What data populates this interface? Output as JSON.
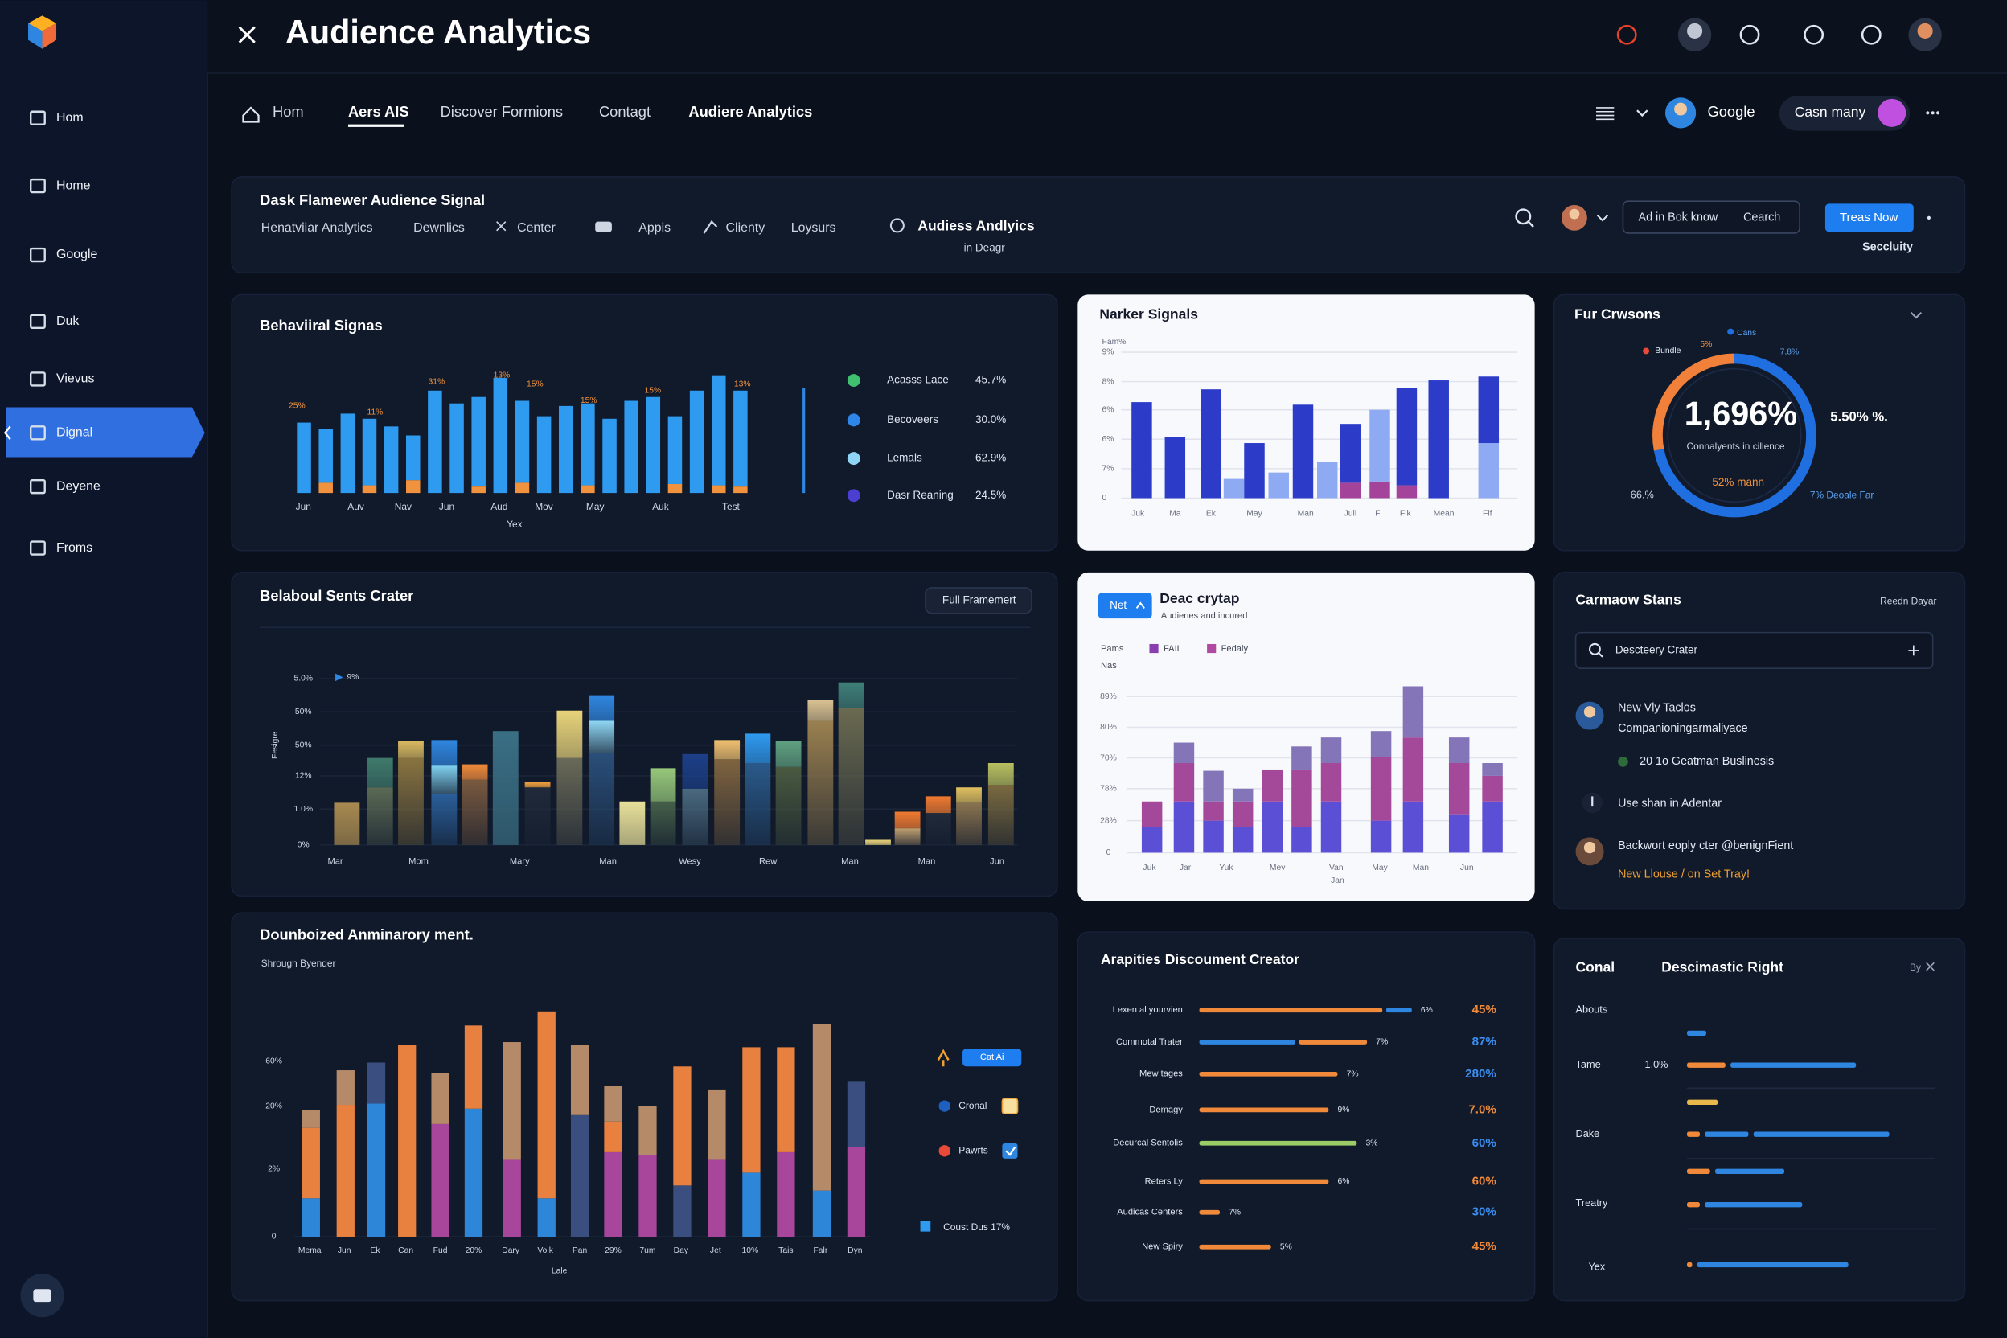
{
  "topbar": {
    "title": "Audience Analytics"
  },
  "sidebar": {
    "items": [
      "Hom",
      "Home",
      "Google",
      "Duk",
      "Vievus",
      "Dignal",
      "Deyene",
      "Froms"
    ],
    "active": 5
  },
  "nav": {
    "tabs": [
      "Hom",
      "Aers AIS",
      "Discover Formions",
      "Contagt",
      "Audiere Analytics"
    ],
    "account": "Google",
    "workspace": "Casn many"
  },
  "filter": {
    "title": "Dask Flamewer Audience Signal",
    "items": [
      "Henatviiar Analytics",
      "Dewnlics",
      "Center",
      "Appis",
      "Clienty",
      "Loysurs"
    ],
    "report": "Audiess Andlyics",
    "report_sub": "in Deagr",
    "input": "Ad in Bok know",
    "search": "Cearch",
    "button": "Treas Now",
    "security": "Seccluity"
  },
  "behavioral": {
    "type": "bar",
    "title": "Behaviiral Signas",
    "x_labels": [
      "Jun",
      "Auv",
      "Nav",
      "Jun",
      "Aud",
      "Mov",
      "May",
      "Auk",
      "Test"
    ],
    "x_label": "Yex",
    "annotations": [
      "25%",
      "11%",
      "31%",
      "13%",
      "15%",
      "15%",
      "15%",
      "13%"
    ],
    "series": [
      {
        "color": "#f0923e",
        "values": [
          0,
          8,
          0,
          6,
          0,
          10,
          0,
          0,
          5,
          0,
          8,
          0,
          0,
          6,
          0,
          0,
          0,
          7,
          0,
          6,
          5
        ]
      },
      {
        "color": "#2e9bf0",
        "values": [
          55,
          42,
          62,
          52,
          52,
          35,
          80,
          70,
          70,
          90,
          64,
          60,
          68,
          64,
          58,
          72,
          75,
          53,
          80,
          86,
          75
        ]
      }
    ],
    "legend": [
      {
        "name": "Acasss Lace",
        "value": "45.7%",
        "color": "#3fbf6f"
      },
      {
        "name": "Becoveers",
        "value": "30.0%",
        "color": "#2e86e8"
      },
      {
        "name": "Lemals",
        "value": "62.9%",
        "color": "#8fd3f5"
      },
      {
        "name": "Dasr Reaning",
        "value": "24.5%",
        "color": "#4a3fd0"
      }
    ]
  },
  "narker": {
    "type": "bar",
    "title": "Narker Signals",
    "y_labels": [
      "Fam%",
      "9%",
      "8%",
      "6%",
      "6%",
      "7%",
      "0"
    ],
    "x_labels": [
      "Juk",
      "Ma",
      "Ek",
      "May",
      "Man",
      "Juli",
      "Fl",
      "Fik",
      "Mean",
      "Fif"
    ],
    "series": [
      {
        "color": "#a3449a",
        "values": [
          0,
          0,
          0,
          0,
          0,
          0,
          0,
          0,
          12,
          13,
          10,
          0,
          0
        ]
      },
      {
        "color": "#8eaaf2",
        "values": [
          0,
          0,
          0,
          15,
          0,
          20,
          0,
          28,
          0,
          56,
          0,
          0,
          43
        ]
      },
      {
        "color": "#2c3cc8",
        "values": [
          75,
          48,
          85,
          0,
          43,
          0,
          73,
          0,
          46,
          0,
          76,
          92,
          52
        ]
      }
    ]
  },
  "fur": {
    "type": "pie",
    "title": "Fur Crwsons",
    "center_value": "1,696%",
    "center_label": "Connalyents in cillence",
    "segments": [
      {
        "name": "Cans",
        "color": "#1f6fe0",
        "value": 72
      },
      {
        "name": "Bundle",
        "color": "#f0803a",
        "value": 28
      }
    ],
    "labels": {
      "top": "5%",
      "top_right": "7,8%",
      "right": "5.50% %.",
      "bottom": "52% mann",
      "left": "66.%",
      "bottom_right": "7% Deoale Far"
    }
  },
  "belaboul": {
    "type": "bar",
    "title": "Belaboul Sents Crater",
    "button": "Full Framemert",
    "y_label": "Fesigre",
    "y_labels": [
      "5.0%",
      "50%",
      "50%",
      "12%",
      "1.0%",
      "0%"
    ],
    "legend": "9%",
    "x_labels": [
      "Mar",
      "Mom",
      "Mary",
      "Man",
      "Wesy",
      "Rew",
      "Man",
      "Man",
      "Jun"
    ],
    "bars": [
      [
        {
          "color": "#a88a50",
          "value": 33
        }
      ],
      [
        {
          "color": "#5b6a55",
          "value": 45
        },
        {
          "color": "#3f7a6c",
          "value": 23
        }
      ],
      [
        {
          "color": "#8a7440",
          "value": 68
        },
        {
          "color": "#d8b860",
          "value": 13
        }
      ],
      [
        {
          "color": "#2a5f9a",
          "value": 40
        },
        {
          "color": "#7fd0f0",
          "value": 22
        },
        {
          "color": "#2f86e0",
          "value": 20
        }
      ],
      [
        {
          "color": "#7a5a40",
          "value": 51
        },
        {
          "color": "#f08a3a",
          "value": 12
        }
      ],
      [
        {
          "color": "#3a6f84",
          "value": 89
        }
      ],
      [
        {
          "color": "#202a3a",
          "value": 45
        },
        {
          "color": "#f0a040",
          "value": 4
        }
      ],
      [
        {
          "color": "#6a6a58",
          "value": 68
        },
        {
          "color": "#e8d37a",
          "value": 37
        }
      ],
      [
        {
          "color": "#2a4f7a",
          "value": 72
        },
        {
          "color": "#8fd8f5",
          "value": 25
        },
        {
          "color": "#2f86e0",
          "value": 20
        }
      ],
      [
        {
          "color": "#e8e09a",
          "value": 34
        }
      ],
      [
        {
          "color": "#45604a",
          "value": 34
        },
        {
          "color": "#96c87a",
          "value": 26
        }
      ],
      [
        {
          "color": "#4a6a80",
          "value": 44
        },
        {
          "color": "#1c3f88",
          "value": 27
        }
      ],
      [
        {
          "color": "#806440",
          "value": 67
        },
        {
          "color": "#f0c070",
          "value": 15
        }
      ],
      [
        {
          "color": "#2a5a8a",
          "value": 64
        },
        {
          "color": "#2f9af0",
          "value": 23
        }
      ],
      [
        {
          "color": "#4a5a40",
          "value": 61
        },
        {
          "color": "#5fa080",
          "value": 20
        }
      ],
      [
        {
          "color": "#9a8050",
          "value": 97
        },
        {
          "color": "#d8c090",
          "value": 16
        }
      ],
      [
        {
          "color": "#6a6a50",
          "value": 107
        },
        {
          "color": "#3f7f78",
          "value": 20
        }
      ],
      [
        {
          "color": "#e8d37a",
          "value": 4
        }
      ],
      [
        {
          "color": "#c0a070",
          "value": 13
        },
        {
          "color": "#f07a30",
          "value": 13
        }
      ],
      [
        {
          "color": "#202a3a",
          "value": 25
        },
        {
          "color": "#f07a30",
          "value": 13
        }
      ],
      [
        {
          "color": "#8a7450",
          "value": 33
        },
        {
          "color": "#e0c060",
          "value": 12
        }
      ],
      [
        {
          "color": "#7a6a40",
          "value": 47
        },
        {
          "color": "#b8c060",
          "value": 17
        }
      ]
    ]
  },
  "deac": {
    "type": "bar",
    "tag": "Net",
    "title": "Deac crytap",
    "subtitle": "Audienes and incured",
    "legend_lead": "Pams",
    "legend": [
      {
        "name": "FAIL",
        "color": "#8a3fb0"
      },
      {
        "name": "Fedaly",
        "color": "#b04aa0"
      }
    ],
    "legend_sub": "Nas",
    "y_labels": [
      "89%",
      "80%",
      "70%",
      "78%",
      "28%",
      "0"
    ],
    "x_labels": [
      "Juk",
      "Jar",
      "Yuk",
      "Mev",
      "Van",
      "May",
      "Man",
      "Jun"
    ],
    "x_sub": "Jan",
    "series": [
      {
        "color": "#5b4fd6",
        "values": [
          20,
          40,
          25,
          20,
          40,
          20,
          40,
          25,
          40,
          30,
          40
        ]
      },
      {
        "color": "#a4489a",
        "values": [
          20,
          30,
          15,
          20,
          25,
          45,
          30,
          50,
          50,
          40,
          20
        ]
      },
      {
        "color": "#8474b8",
        "values": [
          0,
          16,
          24,
          10,
          0,
          18,
          20,
          20,
          40,
          20,
          10
        ]
      }
    ]
  },
  "carmaow": {
    "title": "Carmaow Stans",
    "side": "Reedn Dayar",
    "search": "Descteery Crater",
    "items": [
      "New Vly Taclos",
      "Companioningarmaliyace",
      "20 1o Geatman Buslinesis",
      "Use shan in Adentar",
      "Backwort eoply cter @benignFient",
      "New Llouse / on Set Tray!"
    ]
  },
  "dounb": {
    "type": "bar",
    "title": "Dounboized Anminarory ment.",
    "subtitle": "Shrough Byender",
    "y_labels": [
      "60%",
      "20%",
      "2%",
      "0"
    ],
    "x_labels": [
      "Mema",
      "Jun",
      "Ek",
      "Can",
      "Fud",
      "20%",
      "Dary",
      "Volk",
      "Pan",
      "29%",
      "7um",
      "Day",
      "Jet",
      "10%",
      "Tais",
      "Falr",
      "Dyn"
    ],
    "x_label": "Lale",
    "legend": [
      "Cat Ai",
      "Cronal",
      "Pawrts",
      "Coust Dus 17%"
    ],
    "bars": [
      [
        {
          "color": "#2e86d8",
          "value": 30
        },
        {
          "color": "#e8803f",
          "value": 55
        },
        {
          "color": "#b48a68",
          "value": 14
        }
      ],
      [
        {
          "color": "#e8803f",
          "value": 103
        },
        {
          "color": "#b48a68",
          "value": 27
        }
      ],
      [
        {
          "color": "#2e86d8",
          "value": 104
        },
        {
          "color": "#3a4f80",
          "value": 32
        }
      ],
      [
        {
          "color": "#e8803f",
          "value": 150
        }
      ],
      [
        {
          "color": "#a8469c",
          "value": 88
        },
        {
          "color": "#b48a68",
          "value": 40
        }
      ],
      [
        {
          "color": "#2e86d8",
          "value": 100
        },
        {
          "color": "#e8803f",
          "value": 65
        }
      ],
      [
        {
          "color": "#a8469c",
          "value": 60
        },
        {
          "color": "#b48a68",
          "value": 92
        }
      ],
      [
        {
          "color": "#2e86d8",
          "value": 30
        },
        {
          "color": "#e8803f",
          "value": 146
        }
      ],
      [
        {
          "color": "#3a4f80",
          "value": 95
        },
        {
          "color": "#b48a68",
          "value": 55
        }
      ],
      [
        {
          "color": "#a8469c",
          "value": 66
        },
        {
          "color": "#e8803f",
          "value": 24
        },
        {
          "color": "#b48a68",
          "value": 28
        }
      ],
      [
        {
          "color": "#a8469c",
          "value": 64
        },
        {
          "color": "#b48a68",
          "value": 38
        }
      ],
      [
        {
          "color": "#3a4f80",
          "value": 40
        },
        {
          "color": "#e8803f",
          "value": 93
        }
      ],
      [
        {
          "color": "#a8469c",
          "value": 60
        },
        {
          "color": "#b48a68",
          "value": 55
        }
      ],
      [
        {
          "color": "#2e86d8",
          "value": 50
        },
        {
          "color": "#e8803f",
          "value": 98
        }
      ],
      [
        {
          "color": "#a8469c",
          "value": 66
        },
        {
          "color": "#e8803f",
          "value": 82
        }
      ],
      [
        {
          "color": "#2e86d8",
          "value": 36
        },
        {
          "color": "#b48a68",
          "value": 130
        }
      ],
      [
        {
          "color": "#a8469c",
          "value": 70
        },
        {
          "color": "#3a4f80",
          "value": 51
        }
      ]
    ]
  },
  "arap": {
    "title": "Arapities Discoument Creator",
    "rows": [
      {
        "label": "Lexen al yourvien",
        "segments": [
          {
            "color": "#f08a3a",
            "value": 143
          },
          {
            "color": "#2f86e0",
            "value": 20
          }
        ],
        "small": "6%",
        "share": "45%",
        "share_color": "#f08a3a"
      },
      {
        "label": "Commotal Trater",
        "segments": [
          {
            "color": "#2f86e0",
            "value": 75
          },
          {
            "color": "#f08a3a",
            "value": 53
          }
        ],
        "small": "7%",
        "share": "87%",
        "share_color": "#3b8ef0"
      },
      {
        "label": "Mew tages",
        "segments": [
          {
            "color": "#f08a3a",
            "value": 108
          }
        ],
        "small": "7%",
        "share": "280%",
        "share_color": "#3b8ef0"
      },
      {
        "label": "Demagy",
        "segments": [
          {
            "color": "#f08a3a",
            "value": 101
          }
        ],
        "small": "9%",
        "share": "7.0%",
        "share_color": "#f08a3a"
      },
      {
        "label": "Decurcal Sentolis",
        "segments": [
          {
            "color": "#9ccc65",
            "value": 123
          }
        ],
        "small": "3%",
        "share": "60%",
        "share_color": "#3b8ef0"
      },
      {
        "label": "Reters Ly",
        "segments": [
          {
            "color": "#f08a3a",
            "value": 101
          }
        ],
        "small": "6%",
        "share": "60%",
        "share_color": "#f08a3a"
      },
      {
        "label": "Audicas Centers",
        "segments": [
          {
            "color": "#f08a3a",
            "value": 16
          }
        ],
        "small": "7%",
        "share": "30%",
        "share_color": "#3b8ef0"
      },
      {
        "label": "New Spiry",
        "segments": [
          {
            "color": "#f08a3a",
            "value": 56
          }
        ],
        "small": "5%",
        "share": "45%",
        "share_color": "#f08a3a"
      }
    ]
  },
  "conal": {
    "title": "Conal",
    "subtitle": "Descimastic Right",
    "by": "By",
    "labels": [
      "Abouts",
      "Tame",
      "Dake",
      "Treatry",
      "Yex"
    ],
    "tame_value": "1.0%",
    "bars": [
      [
        {
          "color": "#2f86e0",
          "value": 15
        }
      ],
      [
        {
          "color": "#f08a3a",
          "value": 30
        },
        {
          "color": "#2f86e0",
          "value": 98
        }
      ],
      [
        {
          "color": "#e8b84a",
          "value": 24
        }
      ],
      [
        {
          "color": "#f08a3a",
          "value": 10
        },
        {
          "color": "#2f86e0",
          "value": 34
        },
        {
          "color": "#2f86e0",
          "value": 106
        }
      ],
      [
        {
          "color": "#f08a3a",
          "value": 18
        },
        {
          "color": "#2f86e0",
          "value": 54
        }
      ],
      [
        {
          "color": "#f08a3a",
          "value": 10
        },
        {
          "color": "#2f86e0",
          "value": 76
        }
      ],
      [
        {
          "color": "#f08a3a",
          "value": 4
        },
        {
          "color": "#2f86e0",
          "value": 118
        }
      ]
    ]
  }
}
